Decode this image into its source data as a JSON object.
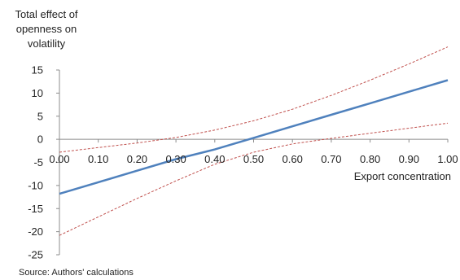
{
  "chart_data": {
    "type": "line",
    "ylabel_lines": [
      "Total effect of",
      "openness on",
      "volatility"
    ],
    "xlabel": "Export concentration",
    "source": "Source: Authors' calculations",
    "xlim": [
      0,
      1
    ],
    "ylim": [
      -25,
      15
    ],
    "x_ticks": [
      0,
      0.1,
      0.2,
      0.3,
      0.4,
      0.5,
      0.6,
      0.7,
      0.8,
      0.9,
      1.0
    ],
    "x_tick_labels": [
      "0.00",
      "0.10",
      "0.20",
      "0.30",
      "0.40",
      "0.50",
      "0.60",
      "0.70",
      "0.80",
      "0.90",
      "1.00"
    ],
    "y_ticks": [
      -25,
      -20,
      -15,
      -10,
      -5,
      0,
      5,
      10,
      15
    ],
    "y_tick_labels": [
      "-25",
      "-20",
      "-15",
      "-10",
      "-5",
      "0",
      "5",
      "10",
      "15"
    ],
    "series": [
      {
        "style": "solid",
        "color": "#4f81bd",
        "x": [
          0,
          0.1,
          0.2,
          0.3,
          0.4,
          0.5,
          0.6,
          0.7,
          0.8,
          0.9,
          1.0
        ],
        "y": [
          -11.8,
          -9.3,
          -6.8,
          -4.3,
          -2.2,
          0.3,
          2.8,
          5.3,
          7.8,
          10.3,
          12.8
        ]
      },
      {
        "style": "dashed",
        "color": "#c0504d",
        "x": [
          0,
          0.1,
          0.2,
          0.3,
          0.4,
          0.5,
          0.6,
          0.7,
          0.8,
          0.9,
          1.0
        ],
        "y": [
          -2.8,
          -1.8,
          -0.8,
          0.4,
          2.0,
          4.0,
          6.5,
          9.5,
          12.8,
          16.3,
          20.0
        ]
      },
      {
        "style": "dashed",
        "color": "#c0504d",
        "x": [
          0,
          0.1,
          0.2,
          0.3,
          0.4,
          0.5,
          0.6,
          0.7,
          0.8,
          0.9,
          1.0
        ],
        "y": [
          -20.8,
          -16.8,
          -12.8,
          -9.0,
          -5.4,
          -2.8,
          -1.0,
          0.2,
          1.3,
          2.4,
          3.5
        ]
      }
    ]
  }
}
